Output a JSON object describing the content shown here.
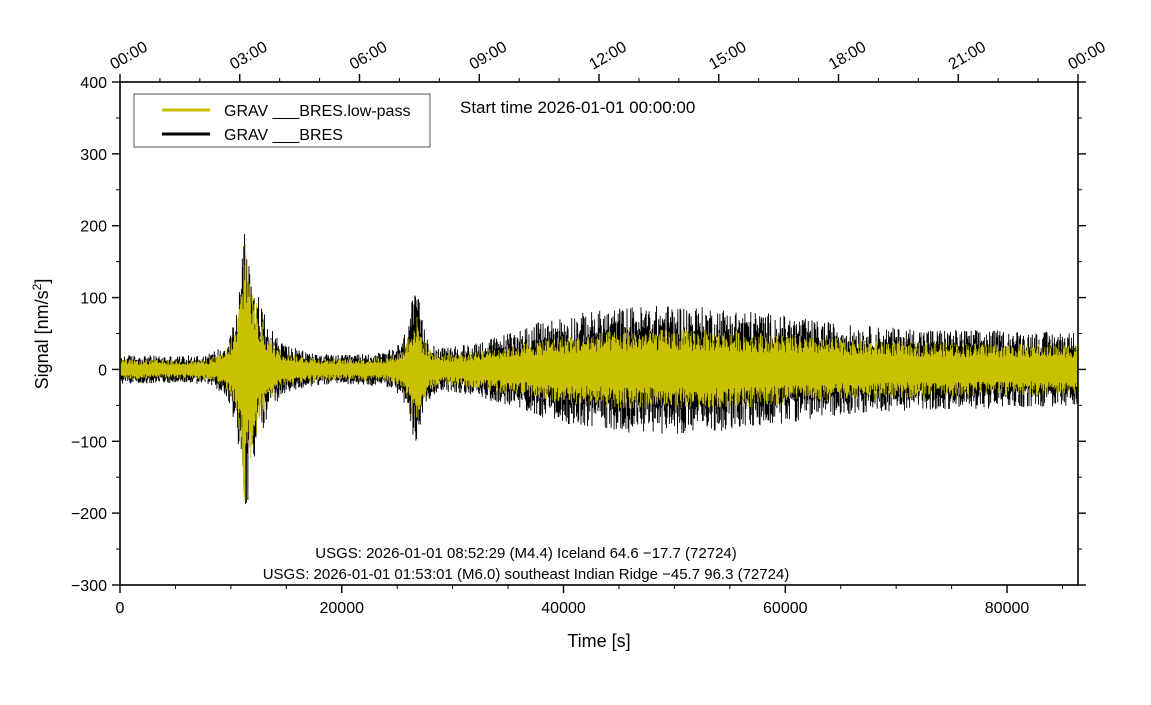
{
  "chart_data": {
    "type": "line",
    "title": "Start time 2026-01-01 00:00:00",
    "xlabel": "Time [s]",
    "ylabel_main": "Signal [nm/s",
    "ylabel_sup": "2",
    "ylabel_close": "]",
    "xlim": [
      0,
      86400
    ],
    "ylim": [
      -300,
      400
    ],
    "x_ticks": [
      0,
      20000,
      40000,
      60000,
      80000
    ],
    "x_tick_labels": [
      "0",
      "20000",
      "40000",
      "60000",
      "80000"
    ],
    "y_ticks": [
      -300,
      -200,
      -100,
      0,
      100,
      200,
      300,
      400
    ],
    "y_tick_labels": [
      "−300",
      "−200",
      "−100",
      "0",
      "100",
      "200",
      "300",
      "400"
    ],
    "top_axis_ticks_s": [
      0,
      10800,
      21600,
      32400,
      43200,
      54000,
      64800,
      75600,
      86400
    ],
    "top_axis_labels": [
      "00:00",
      "03:00",
      "06:00",
      "09:00",
      "12:00",
      "15:00",
      "18:00",
      "21:00",
      "00:00"
    ],
    "legend_position": "top-left",
    "series": [
      {
        "name": "GRAV ___BRES.low-pass",
        "color": "#c8c000",
        "envelope_x": [
          0,
          2000,
          4000,
          6000,
          8000,
          9500,
          10500,
          11000,
          11300,
          11600,
          12000,
          12600,
          13500,
          14500,
          16000,
          18000,
          20000,
          22000,
          24000,
          25500,
          26300,
          26800,
          27300,
          28000,
          29000,
          31000,
          34000,
          37000,
          40000,
          43000,
          46000,
          50000,
          54000,
          58000,
          62000,
          66000,
          70000,
          74000,
          78000,
          82000,
          86400
        ],
        "envelope_y": [
          14,
          14,
          13,
          13,
          15,
          25,
          60,
          130,
          205,
          150,
          110,
          75,
          45,
          28,
          20,
          16,
          15,
          16,
          17,
          28,
          65,
          75,
          45,
          28,
          22,
          24,
          32,
          40,
          48,
          52,
          55,
          56,
          55,
          52,
          46,
          42,
          40,
          38,
          37,
          36,
          35
        ]
      },
      {
        "name": "GRAV ___BRES",
        "color": "#000000",
        "envelope_x": [
          0,
          2000,
          4000,
          6000,
          8000,
          9500,
          10500,
          11000,
          11300,
          11600,
          12000,
          12600,
          13500,
          14500,
          16000,
          18000,
          20000,
          22000,
          24000,
          25500,
          26300,
          26800,
          27300,
          28000,
          29000,
          31000,
          34000,
          37000,
          40000,
          43000,
          46000,
          50000,
          54000,
          58000,
          62000,
          66000,
          70000,
          74000,
          78000,
          82000,
          86400
        ],
        "envelope_y": [
          20,
          20,
          19,
          19,
          22,
          35,
          80,
          160,
          215,
          175,
          135,
          95,
          60,
          40,
          28,
          22,
          20,
          22,
          24,
          40,
          95,
          110,
          65,
          40,
          30,
          34,
          46,
          62,
          75,
          82,
          88,
          90,
          86,
          80,
          70,
          62,
          58,
          56,
          55,
          53,
          52
        ]
      }
    ],
    "annotations": [
      "USGS: 2026-01-01 08:52:29 (M4.4) Iceland 64.6 −17.7 (72724)",
      "USGS: 2026-01-01 01:53:01 (M6.0) southeast Indian Ridge −45.7 96.3 (72724)"
    ]
  }
}
